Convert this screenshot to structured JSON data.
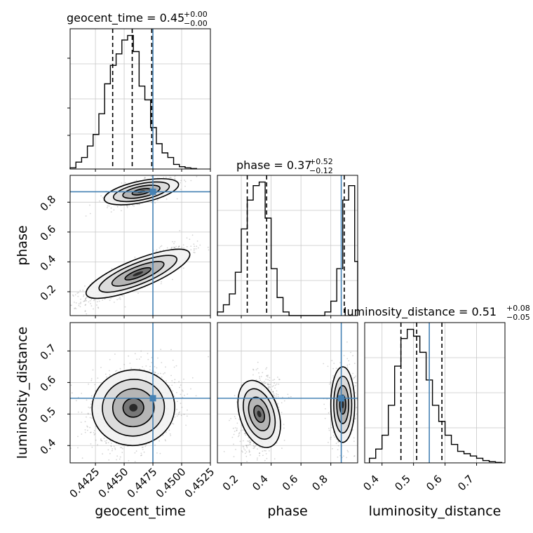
{
  "chart_data": {
    "type": "corner",
    "parameters": [
      "geocent_time",
      "phase",
      "luminosity_distance"
    ],
    "truths": {
      "geocent_time": 0.4475,
      "phase": 0.87,
      "luminosity_distance": 0.55
    },
    "colors": {
      "truth": "#4682b4",
      "hist": "#000000",
      "grid": "#c8c8c8"
    },
    "grid": true,
    "ranges": {
      "geocent_time": [
        0.4403,
        0.4525
      ],
      "phase": [
        0.04,
        0.98
      ],
      "luminosity_distance": [
        0.345,
        0.79
      ]
    },
    "marginals": [
      {
        "param": "geocent_time",
        "title_main": "geocent_time = 0.45",
        "title_plus": "+0.00",
        "title_minus": "−0.00",
        "quantile_lines": [
          0.444,
          0.4457,
          0.4474
        ],
        "bins": [
          0.4403,
          0.4408,
          0.4413,
          0.4418,
          0.4423,
          0.4428,
          0.4433,
          0.4438,
          0.4443,
          0.4448,
          0.4453,
          0.4458,
          0.4463,
          0.4468,
          0.4473,
          0.4478,
          0.4483,
          0.4488,
          0.4493,
          0.4498,
          0.4503,
          0.4508,
          0.4513
        ],
        "counts": [
          0.5,
          3,
          5,
          10,
          15,
          24,
          37,
          45,
          50,
          56,
          58,
          51,
          36,
          30,
          18,
          11,
          7,
          5,
          2,
          1,
          0.5,
          0.2
        ],
        "ticks": [
          0.4425,
          0.445,
          0.4475,
          0.45,
          0.4525
        ],
        "tick_labels": [
          "0.4425",
          "0.4450",
          "0.4475",
          "0.4500",
          "0.4525"
        ]
      },
      {
        "param": "phase",
        "title_main": "phase = 0.37",
        "title_plus": "+0.52",
        "title_minus": "−0.12",
        "quantile_lines": [
          0.24,
          0.37,
          0.89
        ],
        "bins": [
          0.04,
          0.08,
          0.12,
          0.16,
          0.2,
          0.24,
          0.28,
          0.32,
          0.36,
          0.4,
          0.44,
          0.48,
          0.52,
          0.56,
          0.6,
          0.64,
          0.68,
          0.72,
          0.76,
          0.8,
          0.84,
          0.88,
          0.92,
          0.96,
          0.98
        ],
        "counts": [
          1,
          3,
          6,
          12,
          24,
          32,
          36,
          37,
          27,
          13,
          5,
          1,
          0,
          0,
          0,
          0,
          0,
          0,
          1,
          4,
          13,
          32,
          36,
          15
        ],
        "ticks": [
          0.2,
          0.4,
          0.6,
          0.8
        ],
        "tick_labels": [
          "0.2",
          "0.4",
          "0.6",
          "0.8"
        ]
      },
      {
        "param": "luminosity_distance",
        "title_main": "luminosity_distance = 0.51",
        "title_plus": "+0.08",
        "title_minus": "−0.05",
        "quantile_lines": [
          0.46,
          0.51,
          0.59
        ],
        "bins": [
          0.36,
          0.38,
          0.4,
          0.42,
          0.44,
          0.46,
          0.48,
          0.5,
          0.52,
          0.54,
          0.56,
          0.58,
          0.6,
          0.62,
          0.64,
          0.66,
          0.68,
          0.7,
          0.72,
          0.74,
          0.76,
          0.78
        ],
        "counts": [
          2,
          6,
          12,
          25,
          42,
          54,
          58,
          55,
          48,
          36,
          25,
          18,
          12,
          8,
          5,
          4,
          3,
          2,
          1,
          0.5,
          0.2
        ],
        "ticks": [
          0.4,
          0.5,
          0.6,
          0.7
        ],
        "tick_labels": [
          "0.4",
          "0.5",
          "0.6",
          "0.7"
        ]
      }
    ],
    "joint": [
      {
        "x": "geocent_time",
        "y": "phase",
        "clusters": [
          {
            "cx": 0.4462,
            "cy": 0.32,
            "sx": 0.0022,
            "sy": 0.09,
            "rho": 0.85,
            "n": 1200
          },
          {
            "cx": 0.4465,
            "cy": 0.87,
            "sx": 0.0015,
            "sy": 0.045,
            "rho": 0.6,
            "n": 550
          }
        ]
      },
      {
        "x": "geocent_time",
        "y": "luminosity_distance",
        "clusters": [
          {
            "cx": 0.4458,
            "cy": 0.52,
            "sx": 0.0018,
            "sy": 0.06,
            "rho": 0.15,
            "n": 1500
          }
        ]
      },
      {
        "x": "phase",
        "y": "luminosity_distance",
        "clusters": [
          {
            "cx": 0.32,
            "cy": 0.5,
            "sx": 0.065,
            "sy": 0.055,
            "rho": 0.2,
            "n": 1100
          },
          {
            "cx": 0.88,
            "cy": 0.53,
            "sx": 0.04,
            "sy": 0.06,
            "rho": 0.0,
            "n": 550
          }
        ]
      }
    ],
    "axis_labels": {
      "geocent_time": "geocent_time",
      "phase": "phase",
      "luminosity_distance": "luminosity_distance"
    }
  }
}
